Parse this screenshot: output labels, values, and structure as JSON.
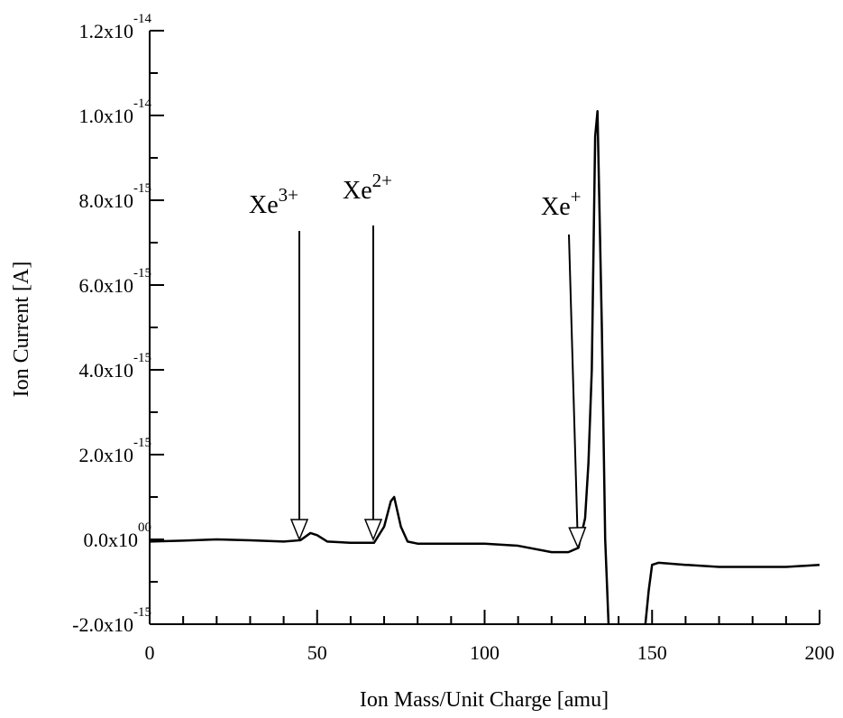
{
  "chart_data": {
    "type": "line",
    "x_label": "Ion Mass/Unit Charge [amu]",
    "y_label": "Ion Current [A]",
    "x": [
      0,
      10,
      20,
      30,
      40,
      45,
      48,
      50,
      53,
      60,
      67,
      70,
      72,
      73,
      75,
      77,
      80,
      90,
      100,
      110,
      120,
      125,
      128,
      130,
      131,
      132,
      133,
      133.7,
      135,
      136,
      137,
      142,
      148,
      149,
      150,
      152,
      160,
      170,
      180,
      190,
      200
    ],
    "values": [
      -5e-17,
      -3e-17,
      0,
      -2e-17,
      -5e-17,
      -2e-17,
      1.5e-16,
      1e-16,
      -5e-17,
      -8e-17,
      -8e-17,
      3e-16,
      9e-16,
      1e-15,
      3e-16,
      -5e-17,
      -1e-16,
      -1e-16,
      -1e-16,
      -1.5e-16,
      -3e-16,
      -3e-16,
      -2e-16,
      5e-16,
      1.8e-15,
      4e-15,
      9.5e-15,
      1.01e-14,
      5e-15,
      0,
      -2e-15,
      null,
      -2e-15,
      -1.2e-15,
      -6e-16,
      -5.5e-16,
      -6e-16,
      -6.5e-16,
      -6.5e-16,
      -6.5e-16,
      -6e-16
    ],
    "color": "#000000",
    "xlim": [
      0,
      200
    ],
    "xticks": [
      0,
      50,
      100,
      150,
      200
    ],
    "x_minor_ticks": [
      10,
      20,
      30,
      40,
      60,
      70,
      80,
      90,
      110,
      120,
      130,
      140,
      160,
      170,
      180,
      190
    ],
    "ylim": [
      -2e-15,
      1.2e-14
    ],
    "yticks": [
      {
        "value": -2e-15,
        "label": "-2.0x10",
        "exponent": "-15"
      },
      {
        "value": 0,
        "label": "0.0x10",
        "exponent": "00"
      },
      {
        "value": 2e-15,
        "label": "2.0x10",
        "exponent": "-15"
      },
      {
        "value": 4e-15,
        "label": "4.0x10",
        "exponent": "-15"
      },
      {
        "value": 6e-15,
        "label": "6.0x10",
        "exponent": "-15"
      },
      {
        "value": 8e-15,
        "label": "8.0x10",
        "exponent": "-15"
      },
      {
        "value": 1e-14,
        "label": "1.0x10",
        "exponent": "-14"
      },
      {
        "value": 1.2e-14,
        "label": "1.2x10",
        "exponent": "-14"
      }
    ],
    "y_minor_ticks": [
      -1e-15,
      1e-15,
      3e-15,
      5e-15,
      7e-15,
      9e-15,
      1.1e-14
    ],
    "annotations": [
      {
        "text": "Xe",
        "superscript": "3+"
      },
      {
        "text": "Xe",
        "superscript": "2+"
      },
      {
        "text": "Xe",
        "superscript": "+"
      }
    ]
  }
}
